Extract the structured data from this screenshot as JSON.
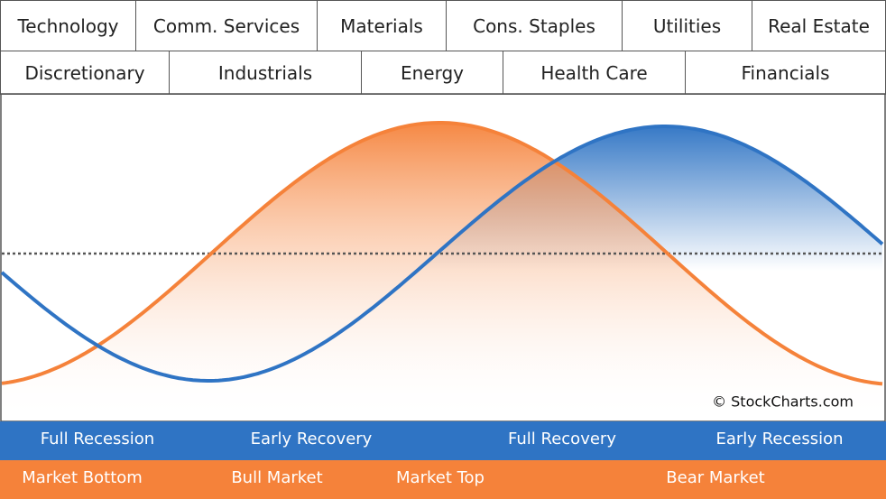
{
  "sector_rows": [
    [
      "Technology",
      "Comm. Services",
      "Materials",
      "Cons. Staples",
      "Utilities",
      "Real Estate"
    ],
    [
      "Discretionary",
      "Industrials",
      "Energy",
      "Health Care",
      "Financials"
    ]
  ],
  "copyright": "© StockCharts.com",
  "economic_phases": [
    "Full Recession",
    "Early Recovery",
    "Full Recovery",
    "Early Recession"
  ],
  "market_phases": [
    "Market Bottom",
    "Bull Market",
    "Market Top",
    "Bear Market"
  ]
}
